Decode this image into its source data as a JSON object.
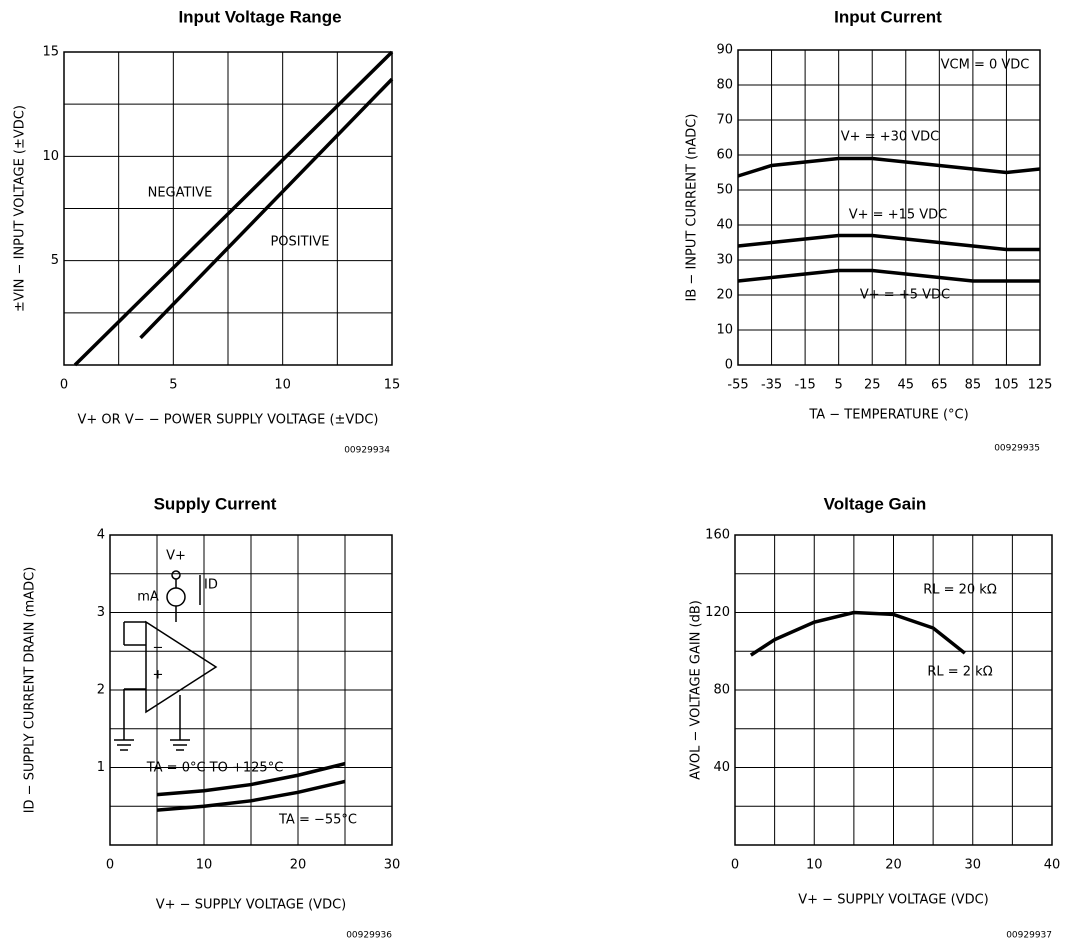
{
  "chart_data": [
    {
      "type": "line",
      "title": "Input Voltage Range",
      "x_label": "V+ OR V− − POWER SUPPLY VOLTAGE (±VDC)",
      "y_label": "±VIN − INPUT VOLTAGE (±VDC)",
      "xlim": [
        0,
        15
      ],
      "ylim": [
        0,
        15
      ],
      "xticks": [
        0,
        5,
        10,
        15
      ],
      "yticks": [
        5,
        10,
        15
      ],
      "minor_xticks": [
        2.5,
        7.5,
        12.5
      ],
      "minor_yticks": [
        2.5,
        7.5,
        12.5
      ],
      "grid": true,
      "color": "#000000",
      "series": [
        {
          "name": "NEGATIVE",
          "x": [
            0.5,
            15
          ],
          "values": [
            0,
            15
          ]
        },
        {
          "name": "POSITIVE",
          "x": [
            3.5,
            15
          ],
          "values": [
            1.3,
            13.7
          ]
        }
      ],
      "code": "00929934"
    },
    {
      "type": "line",
      "title": "Input Current",
      "x_label": "TA − TEMPERATURE (°C)",
      "y_label": "IB − INPUT CURRENT (nADC)",
      "x": [
        -55,
        -35,
        -15,
        5,
        25,
        45,
        65,
        85,
        105,
        125
      ],
      "xlim": [
        -55,
        125
      ],
      "ylim": [
        0,
        90
      ],
      "xticks": [
        -55,
        -35,
        -15,
        5,
        25,
        45,
        65,
        85,
        105,
        125
      ],
      "yticks": [
        0,
        10,
        20,
        30,
        40,
        50,
        60,
        70,
        80,
        90
      ],
      "grid": true,
      "color": "#000000",
      "annotations": [
        "VCM = 0 VDC"
      ],
      "series": [
        {
          "name": "V+ = +30 VDC",
          "values": [
            54,
            57,
            58,
            59,
            59,
            58,
            57,
            56,
            55,
            56
          ]
        },
        {
          "name": "V+ = +15 VDC",
          "values": [
            34,
            35,
            36,
            37,
            37,
            36,
            35,
            34,
            33,
            33
          ]
        },
        {
          "name": "V+ = +5 VDC",
          "values": [
            24,
            25,
            26,
            27,
            27,
            26,
            25,
            24,
            24,
            24
          ]
        }
      ],
      "code": "00929935"
    },
    {
      "type": "line",
      "title": "Supply Current",
      "x_label": "V+ − SUPPLY VOLTAGE (VDC)",
      "y_label": "ID − SUPPLY CURRENT DRAIN (mADC)",
      "xlim": [
        0,
        30
      ],
      "ylim": [
        0,
        4
      ],
      "xticks": [
        0,
        10,
        20,
        30
      ],
      "yticks": [
        1,
        2,
        3,
        4
      ],
      "minor_xticks": [
        5,
        15,
        25
      ],
      "minor_yticks": [
        0.5,
        1.5,
        2.5,
        3.5
      ],
      "grid": true,
      "color": "#000000",
      "series": [
        {
          "name": "TA = 0°C TO +125°C",
          "x": [
            5,
            10,
            15,
            20,
            25
          ],
          "values": [
            0.65,
            0.7,
            0.78,
            0.9,
            1.05
          ]
        },
        {
          "name": "TA = −55°C",
          "x": [
            5,
            10,
            15,
            20,
            25
          ],
          "values": [
            0.45,
            0.5,
            0.57,
            0.68,
            0.82
          ]
        }
      ],
      "inset_labels": [
        "V+",
        "mA",
        "ID",
        "−",
        "+"
      ],
      "code": "00929936"
    },
    {
      "type": "line",
      "title": "Voltage Gain",
      "x_label": "V+ − SUPPLY VOLTAGE (VDC)",
      "y_label": "AVOL − VOLTAGE GAIN (dB)",
      "xlim": [
        0,
        40
      ],
      "ylim": [
        0,
        160
      ],
      "xticks": [
        0,
        10,
        20,
        30,
        40
      ],
      "yticks": [
        40,
        80,
        120,
        160
      ],
      "minor_xticks": [
        5,
        15,
        25,
        35
      ],
      "minor_yticks": [
        20,
        60,
        100,
        140
      ],
      "grid": true,
      "color": "#000000",
      "annotations": [
        "RL = 20 kΩ",
        "RL = 2 kΩ"
      ],
      "series": [
        {
          "x": [
            2,
            5,
            10,
            15,
            20,
            25,
            29
          ],
          "values": [
            98,
            106,
            115,
            120,
            119,
            112,
            99
          ]
        }
      ],
      "code": "00929937"
    }
  ]
}
